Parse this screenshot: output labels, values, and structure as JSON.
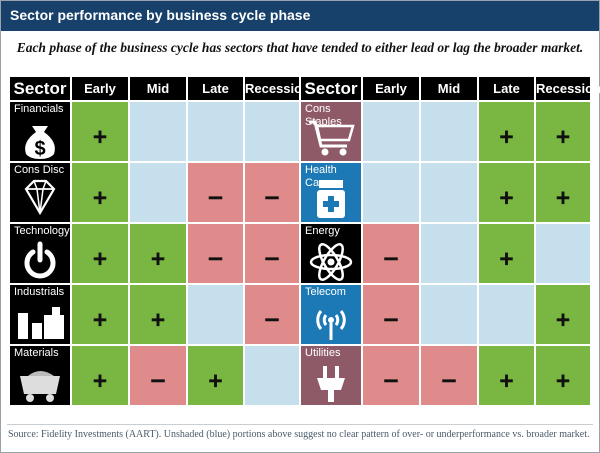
{
  "header": {
    "title": "Sector performance by business cycle phase"
  },
  "subtitle": "Each phase of the business cycle has sectors that have tended to either lead or lag the broader market.",
  "columns_left": {
    "sector": "Sector",
    "phases": [
      "Early",
      "Mid",
      "Late",
      "Recession"
    ]
  },
  "columns_right": {
    "sector": "Sector",
    "phases": [
      "Early",
      "Mid",
      "Late",
      "Recession"
    ]
  },
  "colors": {
    "lead": "#7ab642",
    "neutral": "#c5e0ec",
    "lag": "#df8b8b",
    "header": "#17406b"
  },
  "chart_data": {
    "type": "table",
    "phases": [
      "Early",
      "Mid",
      "Late",
      "Recession"
    ],
    "sectors": [
      {
        "name": "Financials",
        "icon": "money-bag-icon",
        "values": [
          "+",
          "",
          "",
          ""
        ]
      },
      {
        "name": "Cons Disc",
        "icon": "diamond-icon",
        "values": [
          "+",
          "",
          "—",
          "—"
        ]
      },
      {
        "name": "Technology",
        "icon": "power-icon",
        "values": [
          "+",
          "+",
          "—",
          "—"
        ]
      },
      {
        "name": "Industrials",
        "icon": "factory-icon",
        "values": [
          "+",
          "+",
          "",
          "—"
        ]
      },
      {
        "name": "Materials",
        "icon": "mine-cart-icon",
        "values": [
          "+",
          "—",
          "+",
          ""
        ]
      },
      {
        "name": "Cons Staples",
        "icon": "shopping-cart-icon",
        "values": [
          "",
          "",
          "+",
          "+"
        ]
      },
      {
        "name": "Health Care",
        "icon": "medicine-bottle-icon",
        "values": [
          "",
          "",
          "+",
          "+"
        ]
      },
      {
        "name": "Energy",
        "icon": "atom-icon",
        "values": [
          "—",
          "",
          "+",
          ""
        ]
      },
      {
        "name": "Telecom",
        "icon": "antenna-icon",
        "values": [
          "—",
          "",
          "",
          "+"
        ]
      },
      {
        "name": "Utilities",
        "icon": "plug-icon",
        "values": [
          "—",
          "—",
          "+",
          "+"
        ]
      }
    ]
  },
  "source": "Source: Fidelity Investments (AART). Unshaded (blue) portions above suggest no clear pattern of over- or underperformance vs. broader market."
}
